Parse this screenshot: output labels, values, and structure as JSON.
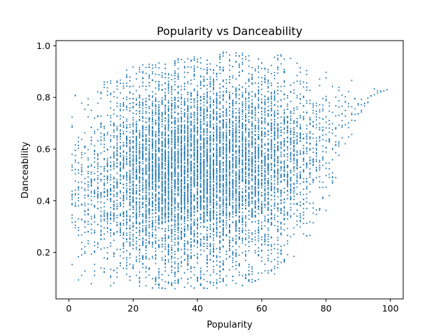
{
  "chart_data": {
    "type": "scatter",
    "title": "Popularity vs Danceability",
    "xlabel": "Popularity",
    "ylabel": "Danceability",
    "xlim": [
      -4,
      104
    ],
    "ylim": [
      0.02,
      1.02
    ],
    "xticks": [
      0,
      20,
      40,
      60,
      80,
      100
    ],
    "yticks": [
      0.2,
      0.4,
      0.6,
      0.8,
      1.0
    ],
    "xtick_labels": [
      "0",
      "20",
      "40",
      "60",
      "80",
      "100"
    ],
    "ytick_labels": [
      "0.2",
      "0.4",
      "0.6",
      "0.8",
      "1.0"
    ],
    "grid": false,
    "marker_color": "#1f77b4",
    "series": [
      {
        "x_range": [
          1,
          99
        ],
        "y_range": [
          0.06,
          0.98
        ],
        "density_profile": [
          {
            "x": 1,
            "count": 18,
            "y_min": 0.07,
            "y_max": 0.82
          },
          {
            "x": 5,
            "count": 25,
            "y_min": 0.07,
            "y_max": 0.78
          },
          {
            "x": 10,
            "count": 45,
            "y_min": 0.07,
            "y_max": 0.86
          },
          {
            "x": 15,
            "count": 70,
            "y_min": 0.07,
            "y_max": 0.88
          },
          {
            "x": 20,
            "count": 110,
            "y_min": 0.07,
            "y_max": 0.93
          },
          {
            "x": 25,
            "count": 150,
            "y_min": 0.06,
            "y_max": 0.93
          },
          {
            "x": 30,
            "count": 180,
            "y_min": 0.06,
            "y_max": 0.95
          },
          {
            "x": 35,
            "count": 190,
            "y_min": 0.06,
            "y_max": 0.95
          },
          {
            "x": 40,
            "count": 185,
            "y_min": 0.06,
            "y_max": 0.96
          },
          {
            "x": 45,
            "count": 170,
            "y_min": 0.06,
            "y_max": 0.97
          },
          {
            "x": 50,
            "count": 160,
            "y_min": 0.07,
            "y_max": 0.98
          },
          {
            "x": 55,
            "count": 140,
            "y_min": 0.07,
            "y_max": 0.97
          },
          {
            "x": 60,
            "count": 120,
            "y_min": 0.1,
            "y_max": 0.97
          },
          {
            "x": 65,
            "count": 95,
            "y_min": 0.12,
            "y_max": 0.97
          },
          {
            "x": 70,
            "count": 60,
            "y_min": 0.18,
            "y_max": 0.95
          },
          {
            "x": 75,
            "count": 35,
            "y_min": 0.25,
            "y_max": 0.93
          },
          {
            "x": 80,
            "count": 18,
            "y_min": 0.3,
            "y_max": 0.9
          },
          {
            "x": 85,
            "count": 8,
            "y_min": 0.55,
            "y_max": 0.9
          },
          {
            "x": 90,
            "count": 4,
            "y_min": 0.7,
            "y_max": 0.85
          },
          {
            "x": 95,
            "count": 2,
            "y_min": 0.8,
            "y_max": 0.84
          },
          {
            "x": 99,
            "count": 1,
            "y_min": 0.83,
            "y_max": 0.83
          }
        ]
      }
    ]
  }
}
